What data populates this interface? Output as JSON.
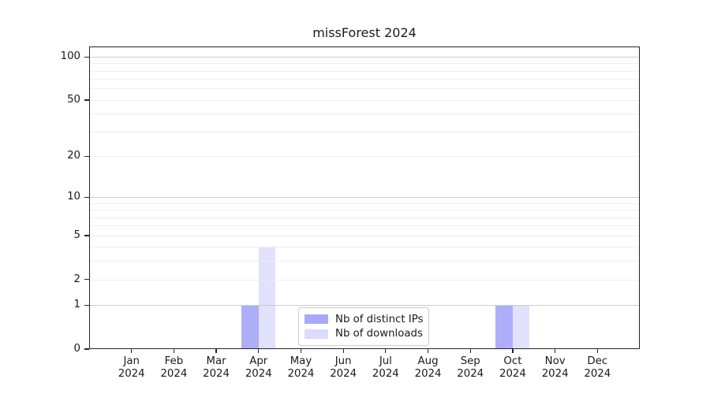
{
  "window": {
    "background": "#ffffff"
  },
  "chart_data": {
    "type": "bar",
    "title": "missForest 2024",
    "categories": [
      "Jan",
      "Feb",
      "Mar",
      "Apr",
      "May",
      "Jun",
      "Jul",
      "Aug",
      "Sep",
      "Oct",
      "Nov",
      "Dec"
    ],
    "x_year_label": "2024",
    "series": [
      {
        "name": "Nb of distinct IPs",
        "color": "#a9a9f8",
        "values": [
          0,
          0,
          0,
          1,
          0,
          0,
          0,
          0,
          0,
          1,
          0,
          0
        ]
      },
      {
        "name": "Nb of downloads",
        "color": "#dbdbfb",
        "values": [
          0,
          0,
          0,
          4,
          0,
          0,
          0,
          0,
          0,
          1,
          0,
          0
        ]
      }
    ],
    "xlabel": "",
    "ylabel": "",
    "scale": "log10(1+x)",
    "ylim": [
      0,
      118
    ],
    "yticks": [
      0,
      1,
      2,
      5,
      10,
      20,
      50,
      100
    ],
    "major_gridlines": [
      1,
      10,
      100
    ],
    "minor_gridlines": [
      2,
      3,
      4,
      5,
      6,
      7,
      8,
      9,
      20,
      30,
      40,
      50,
      60,
      70,
      80,
      90
    ],
    "grid": true,
    "legend": {
      "position": "lower-center"
    },
    "colors": {
      "major_gridline": "#c3c3c3",
      "minor_gridline": "#ececec",
      "axis": "#262626",
      "text": "#1a1a1a",
      "bar_translucency_downloads": 0.82,
      "bar_translucency_ips": 0.95
    }
  }
}
